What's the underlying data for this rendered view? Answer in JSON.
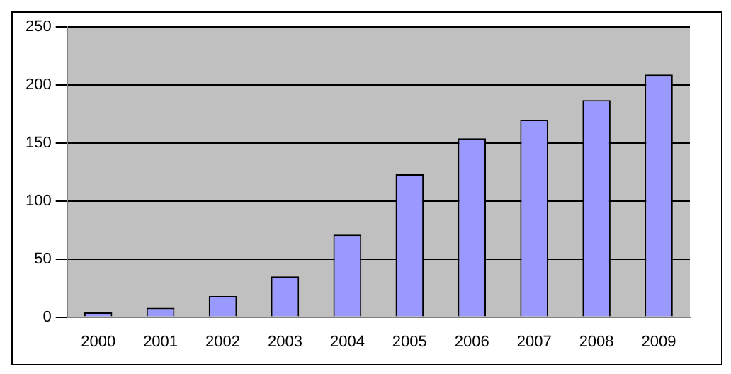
{
  "chart_data": {
    "type": "bar",
    "categories": [
      "2000",
      "2001",
      "2002",
      "2003",
      "2004",
      "2005",
      "2006",
      "2007",
      "2008",
      "2009"
    ],
    "values": [
      4,
      8,
      18,
      35,
      71,
      123,
      154,
      170,
      187,
      209
    ],
    "color": "#9999ff",
    "ylim": [
      0,
      250
    ],
    "yticks": [
      0,
      50,
      100,
      150,
      200,
      250
    ],
    "grid": "y",
    "legend": false
  }
}
